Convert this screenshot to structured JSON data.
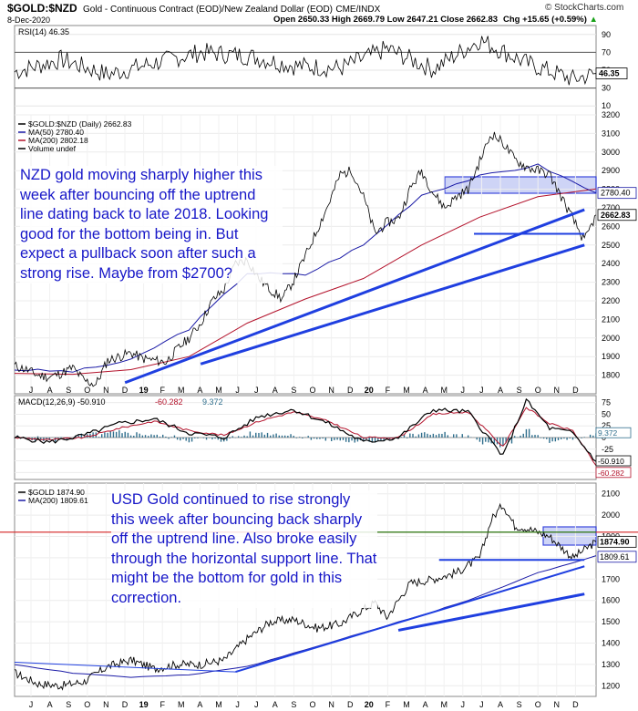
{
  "header": {
    "symbol": "$GOLD:$NZD",
    "description": "Gold - Continuous Contract (EOD)/New Zealand Dollar (EOD)",
    "exchange": "CME/INDX",
    "date": "8-Dec-2020",
    "ohlc": "Open 2650.33  High 2669.79  Low 2647.21  Close 2662.83",
    "chg": "Chg +15.65 (+0.59%)",
    "chg_arrow": "▲",
    "copyright": "© StockCharts.com"
  },
  "colors": {
    "price": "#000000",
    "ma50": "#1a1aa6",
    "ma200": "#b3122b",
    "trend": "#1f3fe0",
    "zone": "#b8c1f2",
    "annot": "#1717c8",
    "macd_hist": "#2f6e8c",
    "support_red": "#d42222",
    "support_green": "#168a16"
  },
  "chart_data": [
    {
      "type": "line",
      "panel": "rsi",
      "legend": "RSI(14) 46.35",
      "last_value": "46.35",
      "y_ticks": [
        90,
        70,
        50,
        30,
        10
      ],
      "ylim": [
        0,
        100
      ],
      "overbought": 70,
      "oversold": 30,
      "x": [
        0,
        8,
        16,
        24,
        32,
        40,
        48,
        56,
        64,
        72,
        80,
        88,
        96,
        100
      ],
      "values": [
        48,
        62,
        45,
        58,
        70,
        66,
        55,
        52,
        74,
        51,
        84,
        58,
        40,
        46
      ]
    },
    {
      "type": "line",
      "panel": "gold_nzd",
      "legend": [
        "$GOLD:$NZD (Daily) 2662.83",
        "MA(50) 2780.40",
        "MA(200) 2802.18",
        "Volume undef"
      ],
      "price_label": "2662.83",
      "ma50_label": "2780.40",
      "y_ticks": [
        3200,
        3100,
        3000,
        2900,
        2800,
        2700,
        2600,
        2500,
        2400,
        2300,
        2200,
        2100,
        2000,
        1900,
        1800
      ],
      "x_labels": [
        "J",
        "A",
        "S",
        "O",
        "N",
        "D",
        "19",
        "F",
        "M",
        "A",
        "M",
        "J",
        "J",
        "A",
        "S",
        "O",
        "N",
        "D",
        "20",
        "F",
        "M",
        "A",
        "M",
        "J",
        "J",
        "A",
        "S",
        "O",
        "N",
        "D"
      ],
      "series": [
        {
          "name": "$GOLD:$NZD",
          "x": [
            0,
            2,
            4,
            6,
            8,
            10,
            12,
            14,
            16,
            18,
            20,
            22,
            24,
            26,
            28,
            30,
            32,
            34,
            36,
            38,
            40,
            42,
            44,
            46,
            48,
            50,
            52,
            54,
            56,
            58,
            60,
            62,
            64,
            66,
            68,
            70,
            72,
            74,
            76,
            78,
            80,
            82,
            84,
            86,
            88,
            90,
            92,
            94,
            96,
            98,
            100
          ],
          "values": [
            1850,
            1830,
            1800,
            1790,
            1810,
            1840,
            1770,
            1750,
            1880,
            1900,
            1920,
            1890,
            1880,
            1870,
            1940,
            2000,
            2080,
            2200,
            2260,
            2400,
            2420,
            2320,
            2260,
            2210,
            2310,
            2440,
            2580,
            2720,
            2880,
            2900,
            2760,
            2560,
            2620,
            2640,
            2800,
            2900,
            2780,
            2700,
            2760,
            2800,
            2950,
            3100,
            3050,
            2960,
            2920,
            2900,
            2880,
            2760,
            2640,
            2520,
            2662
          ]
        },
        {
          "name": "MA(50)",
          "x": [
            0,
            10,
            20,
            30,
            40,
            50,
            60,
            70,
            80,
            90,
            100
          ],
          "values": [
            1830,
            1820,
            1880,
            2050,
            2350,
            2340,
            2500,
            2770,
            2870,
            2930,
            2780
          ]
        },
        {
          "name": "MA(200)",
          "x": [
            0,
            10,
            20,
            30,
            40,
            50,
            60,
            70,
            80,
            90,
            100
          ],
          "values": [
            1810,
            1805,
            1830,
            1900,
            2080,
            2210,
            2320,
            2500,
            2650,
            2760,
            2802
          ]
        }
      ],
      "ylim": [
        1700,
        3200
      ],
      "annotation": "NZD gold moving sharply higher this week after bouncing off the uptrend line dating back to late 2018. Looking good for the bottom being in. But expect a pullback soon after such a strong rise. Maybe from $2700?"
    },
    {
      "type": "line",
      "panel": "macd",
      "legend": [
        "MACD(12,26,9) -50.910",
        "-60.282",
        "9.372"
      ],
      "labels_right": [
        "9.372",
        "-50.910",
        "-60.282"
      ],
      "y_ticks": [
        75,
        50,
        25,
        0,
        -25,
        -50,
        -75
      ],
      "ylim": [
        -90,
        90
      ],
      "x": [
        0,
        6,
        12,
        18,
        24,
        30,
        36,
        42,
        48,
        54,
        60,
        66,
        72,
        78,
        84,
        88,
        92,
        96,
        100
      ],
      "series": [
        {
          "name": "MACD",
          "values": [
            0,
            -10,
            5,
            30,
            40,
            10,
            0,
            45,
            60,
            30,
            -10,
            0,
            60,
            55,
            -40,
            80,
            20,
            10,
            -51
          ]
        },
        {
          "name": "Signal",
          "values": [
            0,
            -5,
            0,
            20,
            35,
            15,
            5,
            35,
            55,
            35,
            0,
            0,
            50,
            55,
            -20,
            65,
            30,
            15,
            -60
          ]
        }
      ]
    },
    {
      "type": "line",
      "panel": "gold_usd",
      "legend": [
        "$GOLD 1874.90",
        "MA(200) 1809.61"
      ],
      "price_label": "1874.90",
      "ma200_label": "1809.61",
      "y_ticks": [
        2100,
        2000,
        1900,
        1800,
        1700,
        1600,
        1500,
        1400,
        1300,
        1200
      ],
      "ylim": [
        1150,
        2150
      ],
      "x_labels": [
        "J",
        "A",
        "S",
        "O",
        "N",
        "D",
        "19",
        "F",
        "M",
        "A",
        "M",
        "J",
        "J",
        "A",
        "S",
        "O",
        "N",
        "D",
        "20",
        "F",
        "M",
        "A",
        "M",
        "J",
        "J",
        "A",
        "S",
        "O",
        "N",
        "D"
      ],
      "series": [
        {
          "name": "$GOLD",
          "x": [
            0,
            4,
            8,
            12,
            16,
            20,
            24,
            28,
            32,
            36,
            40,
            44,
            48,
            52,
            56,
            60,
            62,
            64,
            68,
            72,
            76,
            80,
            82,
            84,
            86,
            88,
            92,
            96,
            100
          ],
          "values": [
            1260,
            1210,
            1200,
            1220,
            1290,
            1320,
            1280,
            1300,
            1300,
            1320,
            1420,
            1500,
            1510,
            1470,
            1490,
            1560,
            1590,
            1520,
            1680,
            1700,
            1730,
            1800,
            1980,
            2050,
            1950,
            1940,
            1900,
            1800,
            1875
          ]
        },
        {
          "name": "MA(200)",
          "x": [
            0,
            10,
            20,
            30,
            40,
            50,
            60,
            70,
            80,
            90,
            100
          ],
          "values": [
            1300,
            1260,
            1240,
            1250,
            1290,
            1370,
            1450,
            1530,
            1620,
            1730,
            1810
          ]
        }
      ],
      "annotation": "USD Gold continued to rise strongly this week after bouncing back sharply off the uptrend line. Also broke easily through the horizontal support line. That might be the bottom for gold in this correction."
    }
  ]
}
